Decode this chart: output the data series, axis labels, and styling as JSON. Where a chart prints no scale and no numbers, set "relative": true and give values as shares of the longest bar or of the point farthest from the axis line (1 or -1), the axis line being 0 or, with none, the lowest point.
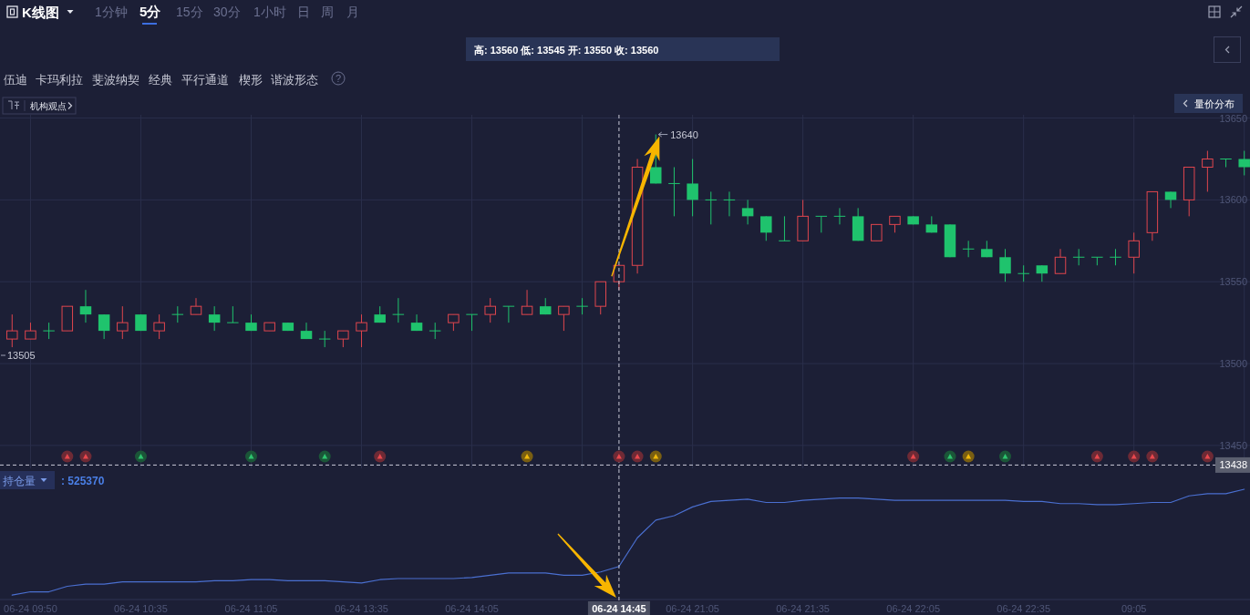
{
  "chart_data": [
    {
      "type": "candlestick",
      "title": "K线图",
      "categories": [
        null,
        "06-24 09:50",
        null,
        null,
        null,
        null,
        null,
        "06-24 10:35",
        null,
        null,
        null,
        null,
        null,
        "06-24 11:05",
        null,
        null,
        null,
        null,
        null,
        "06-24 13:35",
        null,
        null,
        null,
        null,
        null,
        "06-24 14:05",
        null,
        null,
        null,
        null,
        null,
        null,
        null,
        "06-24 14:45",
        null,
        null,
        null,
        "06-24 21:05",
        null,
        null,
        null,
        null,
        null,
        "06-24 21:35",
        null,
        null,
        null,
        null,
        null,
        "06-24 22:05",
        null,
        null,
        null,
        null,
        null,
        "06-24 22:35",
        null,
        null,
        null,
        null,
        null,
        "09:05",
        null,
        null,
        null,
        null,
        null,
        null
      ],
      "ohlc": [
        [
          13515,
          13530,
          13510,
          13520
        ],
        [
          13515,
          13525,
          13515,
          13520
        ],
        [
          13520,
          13525,
          13515,
          13520
        ],
        [
          13520,
          13535,
          13520,
          13535
        ],
        [
          13535,
          13545,
          13525,
          13530
        ],
        [
          13530,
          13530,
          13515,
          13520
        ],
        [
          13520,
          13535,
          13515,
          13525
        ],
        [
          13530,
          13530,
          13520,
          13520
        ],
        [
          13520,
          13530,
          13515,
          13525
        ],
        [
          13530,
          13535,
          13525,
          13530
        ],
        [
          13530,
          13540,
          13530,
          13535
        ],
        [
          13530,
          13535,
          13520,
          13525
        ],
        [
          13525,
          13535,
          13525,
          13525
        ],
        [
          13525,
          13530,
          13520,
          13520
        ],
        [
          13520,
          13525,
          13520,
          13525
        ],
        [
          13525,
          13525,
          13520,
          13520
        ],
        [
          13520,
          13525,
          13515,
          13515
        ],
        [
          13515,
          13520,
          13510,
          13515
        ],
        [
          13515,
          13520,
          13510,
          13520
        ],
        [
          13520,
          13530,
          13510,
          13525
        ],
        [
          13530,
          13535,
          13525,
          13525
        ],
        [
          13530,
          13540,
          13525,
          13530
        ],
        [
          13525,
          13530,
          13520,
          13520
        ],
        [
          13520,
          13525,
          13515,
          13520
        ],
        [
          13525,
          13530,
          13520,
          13530
        ],
        [
          13530,
          13530,
          13520,
          13530
        ],
        [
          13530,
          13540,
          13525,
          13535
        ],
        [
          13535,
          13535,
          13525,
          13535
        ],
        [
          13530,
          13545,
          13530,
          13535
        ],
        [
          13535,
          13540,
          13530,
          13530
        ],
        [
          13530,
          13535,
          13520,
          13535
        ],
        [
          13535,
          13540,
          13530,
          13535
        ],
        [
          13535,
          13550,
          13530,
          13550
        ],
        [
          13550,
          13560,
          13545,
          13560
        ],
        [
          13560,
          13625,
          13555,
          13620
        ],
        [
          13620,
          13640,
          13610,
          13610
        ],
        [
          13610,
          13620,
          13590,
          13610
        ],
        [
          13610,
          13625,
          13590,
          13600
        ],
        [
          13600,
          13605,
          13585,
          13600
        ],
        [
          13600,
          13605,
          13590,
          13600
        ],
        [
          13595,
          13600,
          13585,
          13590
        ],
        [
          13590,
          13590,
          13575,
          13580
        ],
        [
          13575,
          13590,
          13575,
          13575
        ],
        [
          13575,
          13600,
          13575,
          13590
        ],
        [
          13590,
          13590,
          13580,
          13590
        ],
        [
          13590,
          13595,
          13585,
          13590
        ],
        [
          13590,
          13595,
          13575,
          13575
        ],
        [
          13575,
          13585,
          13575,
          13585
        ],
        [
          13585,
          13590,
          13580,
          13590
        ],
        [
          13590,
          13590,
          13585,
          13585
        ],
        [
          13585,
          13590,
          13580,
          13580
        ],
        [
          13585,
          13585,
          13565,
          13565
        ],
        [
          13570,
          13575,
          13565,
          13570
        ],
        [
          13570,
          13575,
          13565,
          13565
        ],
        [
          13565,
          13570,
          13550,
          13555
        ],
        [
          13555,
          13560,
          13550,
          13555
        ],
        [
          13560,
          13560,
          13550,
          13555
        ],
        [
          13555,
          13570,
          13555,
          13565
        ],
        [
          13565,
          13570,
          13560,
          13565
        ],
        [
          13565,
          13565,
          13560,
          13565
        ],
        [
          13565,
          13570,
          13560,
          13565
        ],
        [
          13565,
          13580,
          13555,
          13575
        ],
        [
          13580,
          13605,
          13575,
          13605
        ],
        [
          13605,
          13605,
          13595,
          13600
        ],
        [
          13600,
          13620,
          13590,
          13620
        ],
        [
          13620,
          13630,
          13605,
          13625
        ],
        [
          13625,
          13625,
          13620,
          13625
        ],
        [
          13625,
          13630,
          13615,
          13620
        ]
      ],
      "colors": [
        "#e0464e",
        "#e0464e",
        "#1fc36d",
        "#e0464e",
        "#1fc36d",
        "#1fc36d",
        "#e0464e",
        "#1fc36d",
        "#e0464e",
        "#1fc36d",
        "#e0464e",
        "#1fc36d",
        "#1fc36d",
        "#1fc36d",
        "#e0464e",
        "#1fc36d",
        "#1fc36d",
        "#1fc36d",
        "#e0464e",
        "#e0464e",
        "#1fc36d",
        "#1fc36d",
        "#1fc36d",
        "#1fc36d",
        "#e0464e",
        "#1fc36d",
        "#e0464e",
        "#1fc36d",
        "#e0464e",
        "#1fc36d",
        "#e0464e",
        "#1fc36d",
        "#e0464e",
        "#e0464e",
        "#e0464e",
        "#1fc36d",
        "#1fc36d",
        "#1fc36d",
        "#1fc36d",
        "#1fc36d",
        "#1fc36d",
        "#1fc36d",
        "#1fc36d",
        "#e0464e",
        "#1fc36d",
        "#1fc36d",
        "#1fc36d",
        "#e0464e",
        "#e0464e",
        "#1fc36d",
        "#1fc36d",
        "#1fc36d",
        "#1fc36d",
        "#1fc36d",
        "#1fc36d",
        "#1fc36d",
        "#1fc36d",
        "#e0464e",
        "#1fc36d",
        "#1fc36d",
        "#1fc36d",
        "#e0464e",
        "#e0464e",
        "#1fc36d",
        "#e0464e",
        "#e0464e",
        "#1fc36d",
        "#1fc36d"
      ],
      "ylim": [
        13436,
        13652
      ],
      "yticks": [
        13450,
        13500,
        13550,
        13600,
        13650
      ],
      "grid": true,
      "tick_labels": "y",
      "ref_lines": [
        {
          "axis": "x",
          "value": "06-24 14:45",
          "color": "#c8cad6",
          "line_style": "dashed"
        },
        {
          "axis": "y",
          "value": 13438,
          "label": "13438",
          "color": "#c8cad6",
          "line_style": "dashed"
        }
      ],
      "annotations": [
        "1分钟",
        "5分",
        "15分",
        "30分",
        "1小时",
        "日",
        "周",
        "月",
        "高: 13560 低: 13545 开: 13550 收: 13560",
        "伍迪",
        "卡玛利拉",
        "斐波纳契",
        "经典",
        "平行通道",
        "楔形",
        "谐波形态",
        "?",
        "机构观点",
        "量价分布",
        "13640",
        "13505"
      ]
    },
    {
      "type": "line",
      "title": "持仓量",
      "categories": [
        null,
        "06-24 09:50",
        null,
        null,
        null,
        null,
        null,
        "06-24 10:35",
        null,
        null,
        null,
        null,
        null,
        "06-24 11:05",
        null,
        null,
        null,
        null,
        null,
        "06-24 13:35",
        null,
        null,
        null,
        null,
        null,
        "06-24 14:05",
        null,
        null,
        null,
        null,
        null,
        null,
        null,
        "06-24 14:45",
        null,
        null,
        null,
        "06-24 21:05",
        null,
        null,
        null,
        null,
        null,
        "06-24 21:35",
        null,
        null,
        null,
        null,
        null,
        "06-24 22:05",
        null,
        null,
        null,
        null,
        null,
        "06-24 22:35",
        null,
        null,
        null,
        null,
        null,
        "09:05",
        null,
        null,
        null,
        null,
        null,
        null
      ],
      "series": [
        {
          "color": "#4a6fd0",
          "values": [
            0.04,
            0.07,
            0.07,
            0.12,
            0.14,
            0.14,
            0.16,
            0.16,
            0.16,
            0.16,
            0.16,
            0.17,
            0.17,
            0.18,
            0.18,
            0.17,
            0.17,
            0.17,
            0.16,
            0.15,
            0.18,
            0.19,
            0.19,
            0.19,
            0.19,
            0.2,
            0.22,
            0.24,
            0.24,
            0.24,
            0.22,
            0.22,
            0.25,
            0.3,
            0.56,
            0.72,
            0.76,
            0.84,
            0.89,
            0.9,
            0.91,
            0.88,
            0.88,
            0.9,
            0.91,
            0.92,
            0.92,
            0.91,
            0.9,
            0.9,
            0.9,
            0.9,
            0.9,
            0.9,
            0.9,
            0.89,
            0.89,
            0.87,
            0.87,
            0.86,
            0.86,
            0.87,
            0.88,
            0.88,
            0.94,
            0.96,
            0.96,
            1
          ]
        }
      ],
      "relative": true,
      "tick_labels": "x",
      "ref_lines": [
        {
          "axis": "x",
          "value": "06-24 14:45",
          "color": "#c8cad6",
          "line_style": "dashed"
        }
      ],
      "annotations": [
        ": 525370"
      ]
    }
  ]
}
